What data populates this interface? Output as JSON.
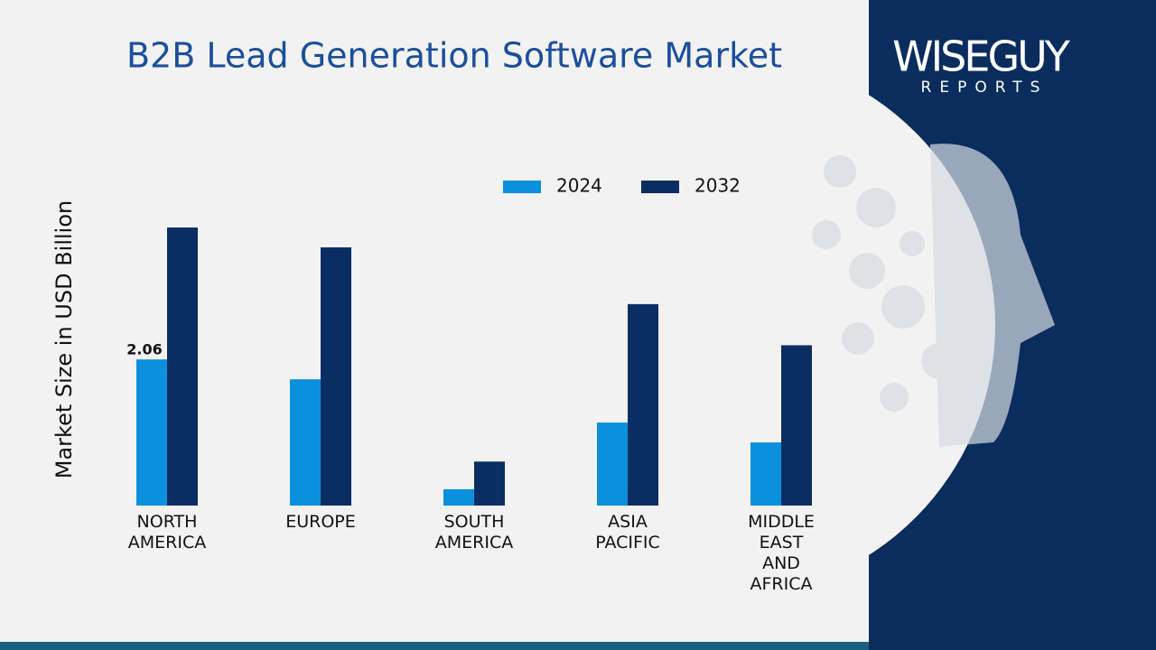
{
  "chart_data": {
    "type": "bar",
    "title": "B2B Lead Generation Software Market",
    "y_label": "Market Size in USD Billion",
    "categories": [
      "NORTH AMERICA",
      "EUROPE",
      "SOUTH AMERICA",
      "ASIA PACIFIC",
      "MIDDLE EAST AND AFRICA"
    ],
    "series": [
      {
        "name": "2024",
        "color": "#0a90dd",
        "values": [
          2.06,
          1.78,
          0.23,
          1.17,
          0.89
        ],
        "value_labels": [
          "2.06",
          null,
          null,
          null,
          null
        ]
      },
      {
        "name": "2032",
        "color": "#0a2e63",
        "values": [
          3.92,
          3.64,
          0.62,
          2.84,
          2.26
        ]
      }
    ],
    "legend": "top"
  },
  "logo": {
    "name": "WISEGUY",
    "tagline": "REPORTS"
  }
}
